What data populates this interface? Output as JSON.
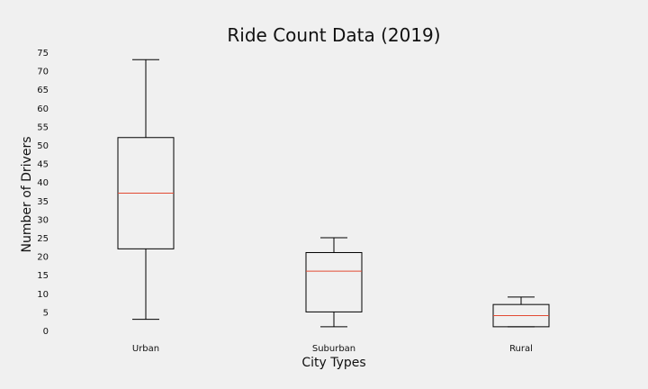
{
  "chart_data": {
    "type": "box",
    "title": "Ride Count Data (2019)",
    "xlabel": "City Types",
    "ylabel": "Number of Drivers",
    "ylim": [
      0,
      75
    ],
    "yticks": [
      0,
      5,
      10,
      15,
      20,
      25,
      30,
      35,
      40,
      45,
      50,
      55,
      60,
      65,
      70,
      75
    ],
    "grid": false,
    "categories": [
      "Urban",
      "Suburban",
      "Rural"
    ],
    "boxes": [
      {
        "category": "Urban",
        "min": 3,
        "q1": 22,
        "median": 37,
        "q3": 52,
        "max": 73
      },
      {
        "category": "Suburban",
        "min": 1,
        "q1": 5,
        "median": 16,
        "q3": 21,
        "max": 25
      },
      {
        "category": "Rural",
        "min": 1,
        "q1": 1,
        "median": 4,
        "q3": 7,
        "max": 9
      }
    ],
    "colors": {
      "background": "#f0f0f0",
      "box_edge": "#000000",
      "median": "#e24a33",
      "text": "#111111"
    }
  }
}
